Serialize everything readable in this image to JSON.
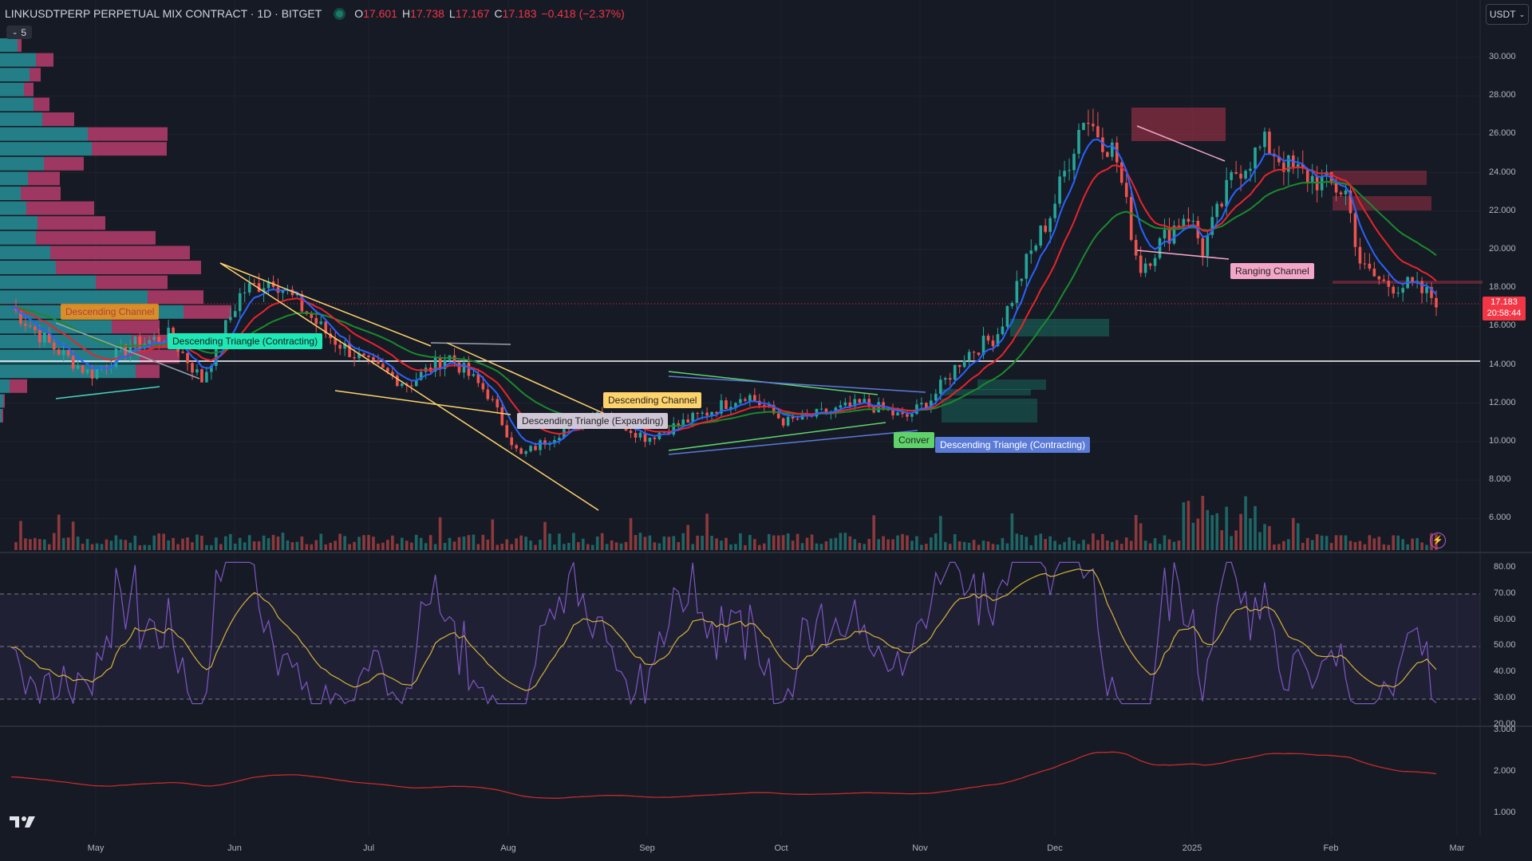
{
  "header": {
    "symbol": "LINKUSDTPERP PERPETUAL MIX CONTRACT · 1D · BITGET",
    "o_label": "O",
    "o_val": "17.601",
    "h_label": "H",
    "h_val": "17.738",
    "l_label": "L",
    "l_val": "17.167",
    "c_label": "C",
    "c_val": "17.183",
    "change": "−0.418 (−2.37%)",
    "indicators_collapsed": "5"
  },
  "currency_selector": "USDT",
  "last_price": {
    "price": "17.183",
    "countdown": "20:58:44"
  },
  "price_axis": [
    "30.000",
    "28.000",
    "26.000",
    "24.000",
    "22.000",
    "20.000",
    "18.000",
    "16.000",
    "14.000",
    "12.000",
    "10.000",
    "8.000",
    "6.000"
  ],
  "rsi_axis": [
    "80.00",
    "70.00",
    "60.00",
    "50.00",
    "40.00",
    "30.00",
    "20.00"
  ],
  "vol_axis": [
    "3.000",
    "2.000",
    "1.000"
  ],
  "time_axis": [
    "May",
    "Jun",
    "Jul",
    "Aug",
    "Sep",
    "Oct",
    "Nov",
    "Dec",
    "2025",
    "Feb",
    "Mar"
  ],
  "pattern_labels": {
    "descending_channel_1": "Descending Channel",
    "descending_triangle_contracting_1": "Descending Triangle (Contracting)",
    "descending_channel_2": "Descending Channel",
    "descending_triangle_expanding": "Descending Triangle (Expanding)",
    "converging": "Conver",
    "descending_triangle_contracting_2": "Descending Triangle (Contracting)",
    "ranging_channel": "Ranging Channel"
  },
  "colors": {
    "up": "#26a69a",
    "down": "#ef5350",
    "ema_fast": "#2962ff",
    "ema_mid": "#e8242c",
    "ema_slow": "#1b8a2c",
    "rsi": "#7e57c2",
    "rsi_ma": "#d4b33a",
    "background": "#161a25"
  },
  "icons": [
    "tradingview-logo-icon",
    "lightning-icon",
    "chevron-down-icon",
    "status-dot-icon"
  ]
}
